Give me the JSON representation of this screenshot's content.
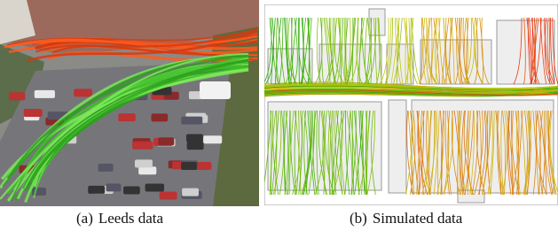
{
  "panels": [
    {
      "label": "(a)",
      "caption": "Leeds data"
    },
    {
      "label": "(b)",
      "caption": "Simulated data"
    }
  ]
}
